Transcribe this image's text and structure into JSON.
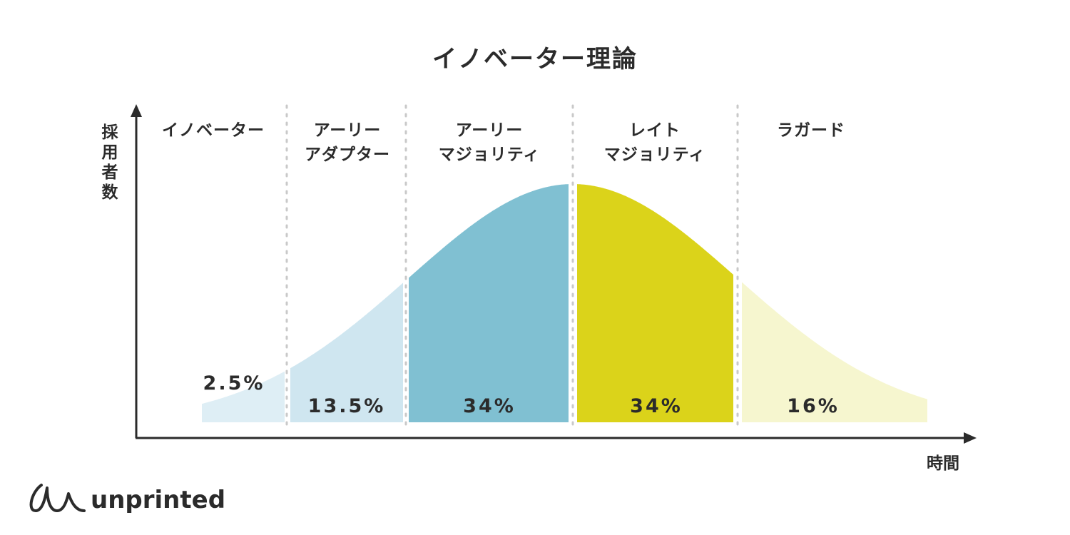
{
  "title": "イノベーター理論",
  "axes": {
    "y_label": "採用者数",
    "x_label": "時間"
  },
  "segments": [
    {
      "label_lines": [
        "イノベーター"
      ],
      "percent": "2.5%",
      "color": "#deeef5"
    },
    {
      "label_lines": [
        "アーリー",
        "アダプター"
      ],
      "percent": "13.5%",
      "color": "#cfe6f0"
    },
    {
      "label_lines": [
        "アーリー",
        "マジョリティ"
      ],
      "percent": "34%",
      "color": "#80c0d2"
    },
    {
      "label_lines": [
        "レイト",
        "マジョリティ"
      ],
      "percent": "34%",
      "color": "#dbd31a"
    },
    {
      "label_lines": [
        "ラガード"
      ],
      "percent": "16%",
      "color": "#f6f6cf"
    }
  ],
  "logo": {
    "text": "unprinted",
    "icon": "unprinted-logo-mark"
  }
}
